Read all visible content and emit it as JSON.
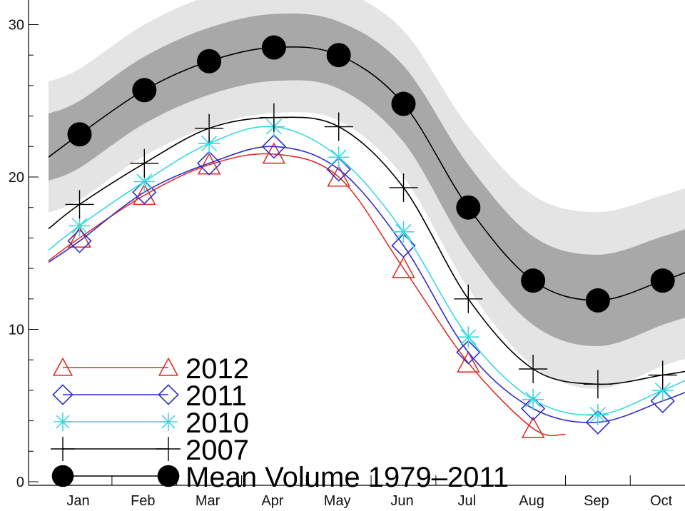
{
  "chart_data": {
    "type": "line",
    "title": "",
    "xlabel": "",
    "ylabel": "",
    "ylim": [
      0,
      31.5
    ],
    "xlim": [
      0.5,
      10.5
    ],
    "grid": false,
    "legend_position": "bottom-left",
    "x_ticks": [
      "Jan",
      "Feb",
      "Mar",
      "Apr",
      "May",
      "Jun",
      "Jul",
      "Aug",
      "Sep",
      "Oct"
    ],
    "y_ticks": [
      0,
      10,
      20,
      30
    ],
    "colors": {
      "band_outer": "#e4e4e4",
      "band_inner": "#a8a8a8",
      "mean": "#000000",
      "y2012": "#e0312b",
      "y2011": "#2f2fc8",
      "y2010": "#3ad8e0",
      "y2007": "#000000"
    },
    "bands": {
      "outer_sigma2_halfwidth": [
        4.3,
        4.3,
        4.3,
        4.3,
        4.3,
        4.8,
        5.3,
        5.6,
        5.8,
        5.6
      ],
      "inner_sigma1_halfwidth": [
        2.2,
        2.2,
        2.2,
        2.2,
        2.2,
        2.5,
        2.8,
        2.9,
        3.0,
        2.9
      ]
    },
    "series": [
      {
        "name": "2012",
        "marker": "triangle",
        "values": [
          16.0,
          18.8,
          20.8,
          21.5,
          20.0,
          14.0,
          7.8,
          3.5,
          null,
          null
        ],
        "line_end_x": 8.5,
        "line_end_y": 3.1
      },
      {
        "name": "2011",
        "marker": "diamond",
        "values": [
          15.8,
          19.0,
          20.9,
          22.0,
          20.5,
          15.5,
          8.5,
          4.8,
          3.9,
          5.3
        ]
      },
      {
        "name": "2010",
        "marker": "asterisk",
        "values": [
          16.8,
          19.7,
          22.2,
          23.3,
          21.3,
          16.4,
          9.5,
          5.4,
          4.4,
          6.0
        ]
      },
      {
        "name": "2007",
        "marker": "plus",
        "values": [
          18.2,
          20.9,
          23.2,
          23.9,
          23.3,
          19.3,
          12.0,
          7.4,
          6.4,
          7.0
        ]
      },
      {
        "name": "Mean Volume 1979–2011",
        "marker": "circle",
        "values": [
          22.8,
          25.7,
          27.6,
          28.5,
          28.0,
          24.8,
          18.0,
          13.2,
          11.9,
          13.2
        ]
      }
    ]
  }
}
